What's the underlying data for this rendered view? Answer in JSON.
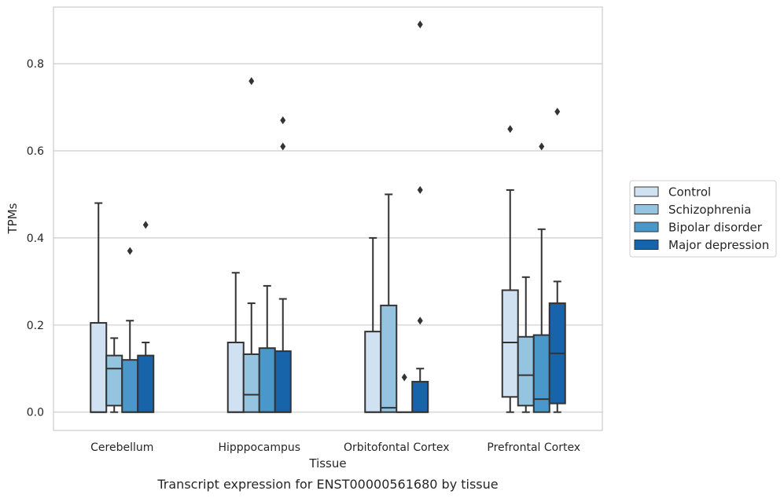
{
  "chart_data": {
    "type": "box",
    "caption": "Transcript expression for ENST00000561680 by tissue",
    "xlabel": "Tissue",
    "ylabel": "TPMs",
    "ylim": [
      -0.042,
      0.93
    ],
    "yticks": [
      0.0,
      0.2,
      0.4,
      0.6,
      0.8
    ],
    "ytick_labels": [
      "0.0",
      "0.2",
      "0.4",
      "0.6",
      "0.8"
    ],
    "grid": "horizontal",
    "legend_position": "right",
    "categories": [
      "Cerebellum",
      "Hipppocampus",
      "Orbitofontal Cortex",
      "Prefrontal Cortex"
    ],
    "series": [
      {
        "name": "Control",
        "color": "#d0e1f2",
        "boxes": [
          {
            "whislo": 0.0,
            "q1": 0.0,
            "med": 0.0,
            "q3": 0.205,
            "whishi": 0.48,
            "fliers": []
          },
          {
            "whislo": 0.0,
            "q1": 0.0,
            "med": 0.0,
            "q3": 0.16,
            "whishi": 0.32,
            "fliers": []
          },
          {
            "whislo": 0.0,
            "q1": 0.0,
            "med": 0.0,
            "q3": 0.185,
            "whishi": 0.4,
            "fliers": []
          },
          {
            "whislo": 0.0,
            "q1": 0.035,
            "med": 0.16,
            "q3": 0.28,
            "whishi": 0.51,
            "fliers": [
              0.65
            ]
          }
        ]
      },
      {
        "name": "Schizophrenia",
        "color": "#94c4df",
        "boxes": [
          {
            "whislo": 0.0,
            "q1": 0.015,
            "med": 0.1,
            "q3": 0.13,
            "whishi": 0.17,
            "fliers": []
          },
          {
            "whislo": 0.0,
            "q1": 0.0,
            "med": 0.04,
            "q3": 0.133,
            "whishi": 0.25,
            "fliers": [
              0.76
            ]
          },
          {
            "whislo": 0.0,
            "q1": 0.0,
            "med": 0.01,
            "q3": 0.245,
            "whishi": 0.5,
            "fliers": []
          },
          {
            "whislo": 0.0,
            "q1": 0.015,
            "med": 0.085,
            "q3": 0.173,
            "whishi": 0.31,
            "fliers": []
          }
        ]
      },
      {
        "name": "Bipolar disorder",
        "color": "#4a98c9",
        "boxes": [
          {
            "whislo": 0.0,
            "q1": 0.0,
            "med": 0.0,
            "q3": 0.12,
            "whishi": 0.21,
            "fliers": [
              0.37
            ]
          },
          {
            "whislo": 0.0,
            "q1": 0.0,
            "med": 0.0,
            "q3": 0.147,
            "whishi": 0.29,
            "fliers": []
          },
          {
            "whislo": 0.0,
            "q1": 0.0,
            "med": 0.0,
            "q3": 0.0,
            "whishi": 0.0,
            "fliers": [
              0.08
            ]
          },
          {
            "whislo": 0.0,
            "q1": 0.0,
            "med": 0.03,
            "q3": 0.177,
            "whishi": 0.42,
            "fliers": [
              0.61
            ]
          }
        ]
      },
      {
        "name": "Major depression",
        "color": "#1764ab",
        "boxes": [
          {
            "whislo": 0.0,
            "q1": 0.0,
            "med": 0.0,
            "q3": 0.13,
            "whishi": 0.16,
            "fliers": [
              0.43
            ]
          },
          {
            "whislo": 0.0,
            "q1": 0.0,
            "med": 0.0,
            "q3": 0.14,
            "whishi": 0.26,
            "fliers": [
              0.61,
              0.67
            ]
          },
          {
            "whislo": 0.0,
            "q1": 0.0,
            "med": 0.0,
            "q3": 0.07,
            "whishi": 0.1,
            "fliers": [
              0.21,
              0.51,
              0.89
            ]
          },
          {
            "whislo": 0.0,
            "q1": 0.02,
            "med": 0.135,
            "q3": 0.25,
            "whishi": 0.3,
            "fliers": [
              0.69
            ]
          }
        ]
      }
    ]
  }
}
